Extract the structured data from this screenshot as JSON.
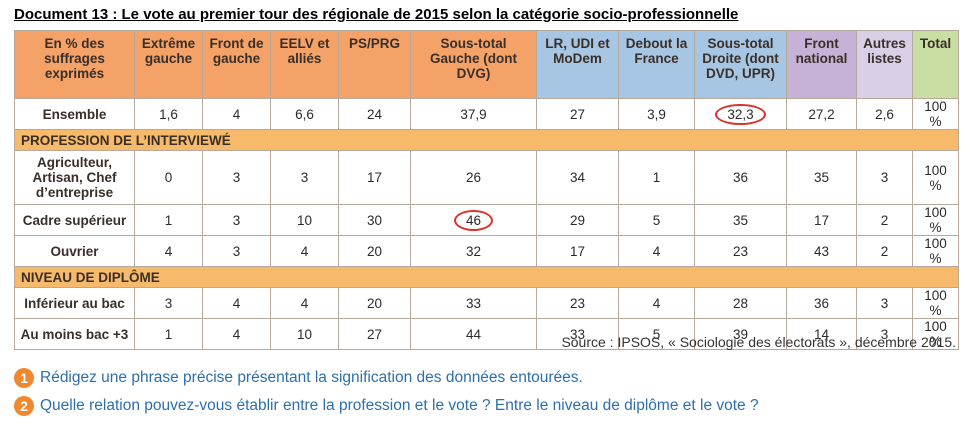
{
  "title": "Document 13 : Le vote au premier tour des régionale de 2015 selon la catégorie socio-professionnelle",
  "table": {
    "header_label": "En % des suffrages exprimés",
    "columns": [
      "Extrême gauche",
      "Front de gauche",
      "EELV et alliés",
      "PS/PRG",
      "Sous-total Gauche (dont DVG)",
      "LR, UDI et MoDem",
      "Debout la France",
      "Sous-total Droite (dont DVD, UPR)",
      "Front national",
      "Autres listes",
      "Total"
    ],
    "rows": [
      {
        "type": "data",
        "label": "Ensemble",
        "values": [
          "1,6",
          "4",
          "6,6",
          "24",
          "37,9",
          "27",
          "3,9",
          "32,3",
          "27,2",
          "2,6",
          "100 %"
        ],
        "circled": 7
      },
      {
        "type": "section",
        "label": "PROFESSION DE L’INTERVIEWÉ"
      },
      {
        "type": "data",
        "label": "Agriculteur, Artisan, Chef d’entreprise",
        "values": [
          "0",
          "3",
          "3",
          "17",
          "26",
          "34",
          "1",
          "36",
          "35",
          "3",
          "100 %"
        ],
        "tall": true
      },
      {
        "type": "data",
        "label": "Cadre supérieur",
        "values": [
          "1",
          "3",
          "10",
          "30",
          "46",
          "29",
          "5",
          "35",
          "17",
          "2",
          "100 %"
        ],
        "circled": 4
      },
      {
        "type": "data",
        "label": "Ouvrier",
        "values": [
          "4",
          "3",
          "4",
          "20",
          "32",
          "17",
          "4",
          "23",
          "43",
          "2",
          "100 %"
        ]
      },
      {
        "type": "section",
        "label": "NIVEAU DE DIPLÔME"
      },
      {
        "type": "data",
        "label": "Inférieur au bac",
        "values": [
          "3",
          "4",
          "4",
          "20",
          "33",
          "23",
          "4",
          "28",
          "36",
          "3",
          "100 %"
        ]
      },
      {
        "type": "data",
        "label": "Au moins bac +3",
        "values": [
          "1",
          "4",
          "10",
          "27",
          "44",
          "33",
          "5",
          "39",
          "14",
          "3",
          "100 %"
        ]
      }
    ]
  },
  "source": "Source : IPSOS, « Sociologie des électorats », décembre 2015.",
  "questions": [
    {
      "num": "1",
      "text": "Rédigez une phrase précise présentant la signification des données entourées."
    },
    {
      "num": "2",
      "text": "Quelle relation pouvez-vous établir entre la profession et le vote ? Entre le niveau de diplôme et le vote ?"
    }
  ]
}
